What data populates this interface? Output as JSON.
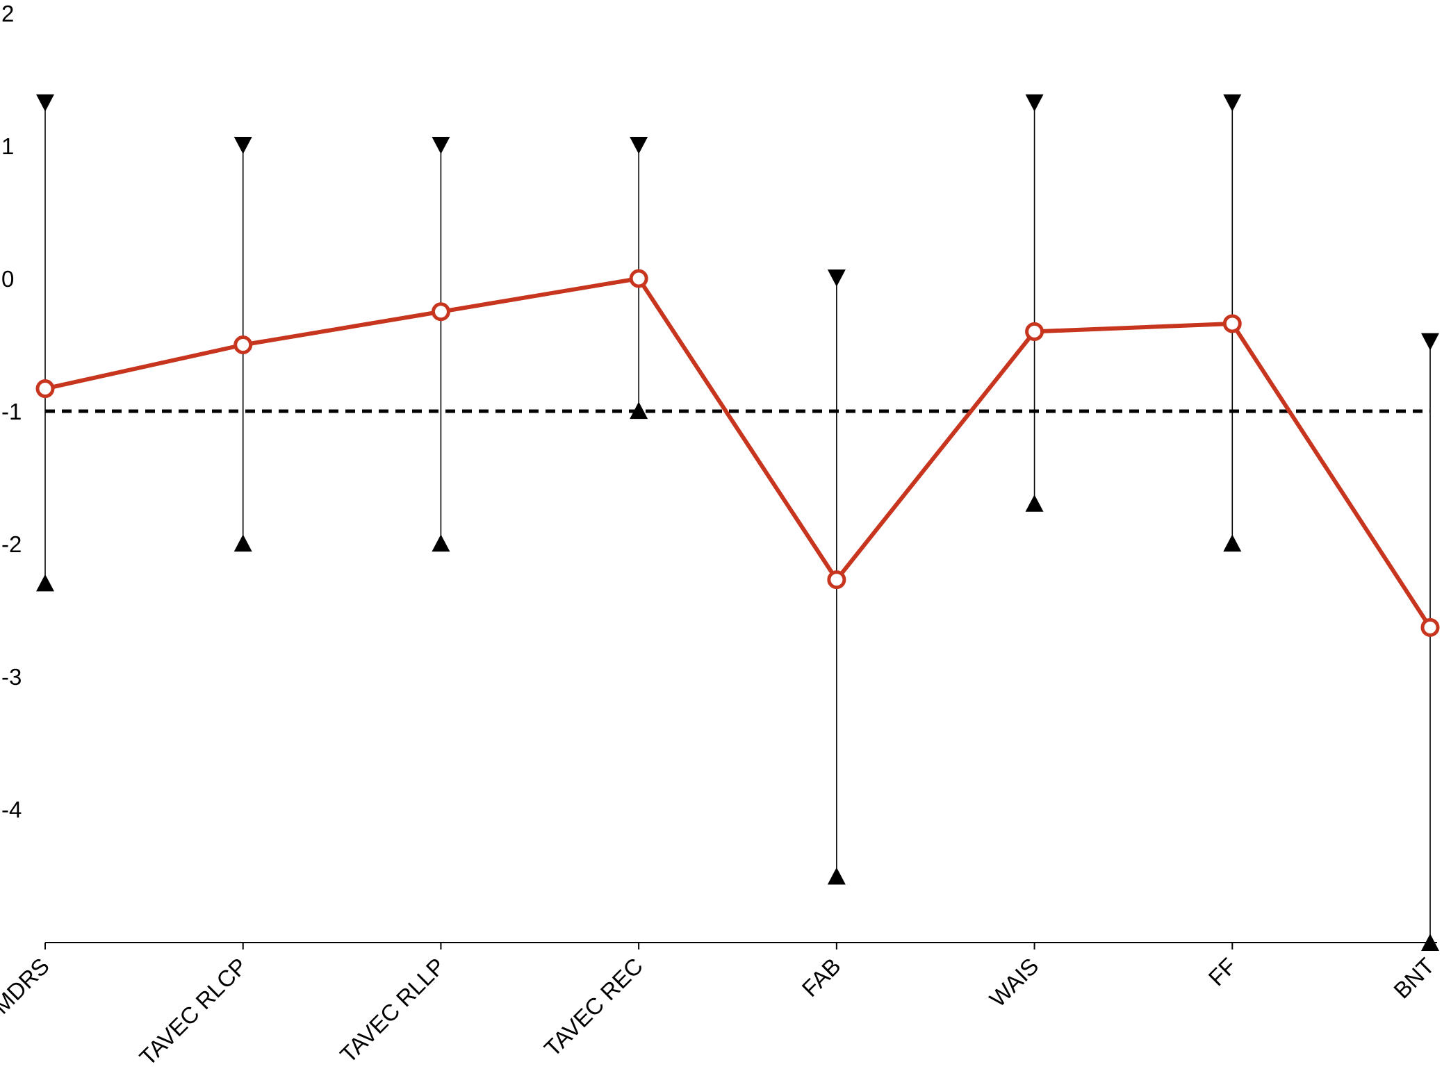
{
  "chart_data": {
    "type": "line",
    "title": "",
    "xlabel": "",
    "ylabel": "",
    "categories": [
      "MDRS",
      "TAVEC RLCP",
      "TAVEC RLLP",
      "TAVEC REC",
      "FAB",
      "WAIS",
      "FF",
      "BNT"
    ],
    "y_ticks": [
      2,
      1,
      0,
      -1,
      -2,
      -3,
      -4
    ],
    "y_tick_labels": [
      "2",
      "1",
      "0",
      "-1",
      "-2",
      "-3",
      "-4"
    ],
    "ylim": [
      -5,
      2
    ],
    "grid": false,
    "legend": "none",
    "series": [
      {
        "values": [
          -0.83,
          -0.5,
          -0.25,
          0.0,
          -2.27,
          -0.4,
          -0.34,
          -2.63
        ]
      }
    ],
    "ranges": [
      {
        "category": "MDRS",
        "upper": 1.32,
        "lower": -2.29
      },
      {
        "category": "TAVEC RLCP",
        "upper": 1.0,
        "lower": -1.99
      },
      {
        "category": "TAVEC RLLP",
        "upper": 1.0,
        "lower": -1.99
      },
      {
        "category": "TAVEC REC",
        "upper": 1.0,
        "lower": -0.99
      },
      {
        "category": "FAB",
        "upper": 0.0,
        "lower": -4.5
      },
      {
        "category": "WAIS",
        "upper": 1.32,
        "lower": -1.69
      },
      {
        "category": "FF",
        "upper": 1.32,
        "lower": -1.99
      },
      {
        "category": "BNT",
        "upper": -0.48,
        "lower": -5.0
      }
    ],
    "reference_line": {
      "y": -1,
      "style": "dashed"
    },
    "colors": {
      "series": "#c8351e",
      "markers_fill": "#ffffff",
      "ranges": "#000000",
      "reference": "#000000",
      "axis": "#000000"
    }
  }
}
